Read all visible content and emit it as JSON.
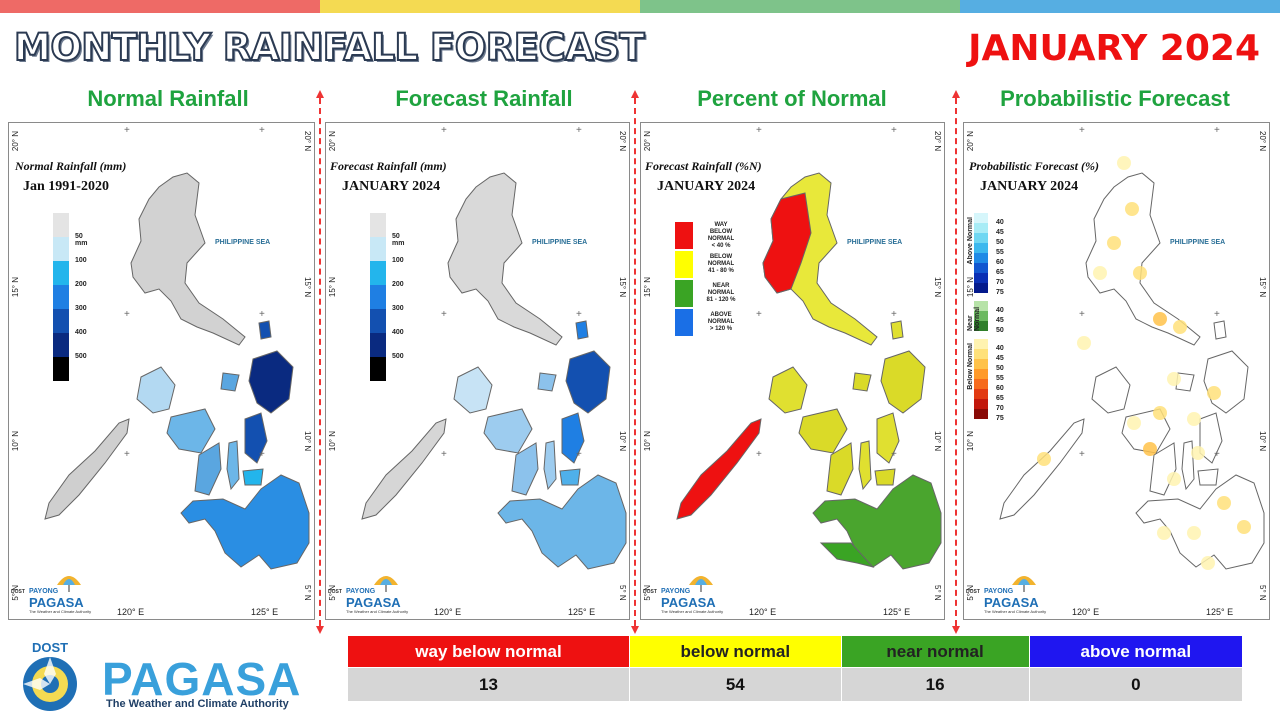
{
  "header": {
    "title": "MONTHLY RAINFALL FORECAST",
    "month": "JANUARY 2024",
    "topbar_colors": [
      "#ee6a66",
      "#f4da52",
      "#7ec38a",
      "#56aee2"
    ]
  },
  "panels": [
    {
      "title": "Normal Rainfall",
      "caption1": "Normal Rainfall (mm)",
      "caption2": "Jan 1991-2020",
      "legend": "mm"
    },
    {
      "title": "Forecast Rainfall",
      "caption1": "Forecast Rainfall (mm)",
      "caption2": "JANUARY 2024",
      "legend": "mm"
    },
    {
      "title": "Percent of Normal",
      "caption1": "Forecast Rainfall (%N)",
      "caption2": "JANUARY 2024",
      "legend": "pct"
    },
    {
      "title": "Probabilistic Forecast",
      "caption1": "Probabilistic Forecast (%)",
      "caption2": "JANUARY 2024",
      "legend": "prob"
    }
  ],
  "map_labels": {
    "sea": "PHILIPPINE SEA",
    "lat_20": "20° N",
    "lat_15": "15° N",
    "lat_10": "10° N",
    "lat_5": "5° N",
    "lon_120": "120° E",
    "lon_125": "125° E"
  },
  "rain_scale": {
    "labels": [
      "50 mm",
      "100",
      "200",
      "300",
      "400",
      "500"
    ],
    "colors": [
      "#e4e4e4",
      "#c8e8f6",
      "#23b5ec",
      "#1f7fe3",
      "#1350b0",
      "#0a2a80",
      "#000000"
    ]
  },
  "percent_legend": [
    {
      "line1": "WAY",
      "line2": "BELOW NORMAL",
      "line3": "< 40 %",
      "color": "#ee1111"
    },
    {
      "line1": "BELOW NORMAL",
      "line2": "41 - 80 %",
      "line3": "",
      "color": "#ffff00"
    },
    {
      "line1": "NEAR NORMAL",
      "line2": "81 - 120 %",
      "line3": "",
      "color": "#3aa424"
    },
    {
      "line1": "ABOVE NORMAL",
      "line2": "> 120 %",
      "line3": "",
      "color": "#1a6fe6"
    }
  ],
  "prob_legend": {
    "above_label": "Above Normal",
    "above_values": [
      "40",
      "45",
      "50",
      "55",
      "60",
      "65",
      "70",
      "75"
    ],
    "above_colors": [
      "#d6f6fb",
      "#a8ecf6",
      "#6fd7f2",
      "#3cb8ee",
      "#1f8ae6",
      "#1257d0",
      "#0a2fb4",
      "#041a8c"
    ],
    "near_label": "Near Normal",
    "near_values": [
      "40",
      "45",
      "50"
    ],
    "near_colors": [
      "#b7e3a8",
      "#6cb960",
      "#2f7f2a"
    ],
    "below_label": "Below Normal",
    "below_values": [
      "40",
      "45",
      "50",
      "55",
      "60",
      "65",
      "70",
      "75"
    ],
    "below_colors": [
      "#fff3b0",
      "#ffe17a",
      "#ffc24a",
      "#ff9a2a",
      "#f66a1c",
      "#e23a12",
      "#c2180c",
      "#8a0a06"
    ]
  },
  "mini_logo": {
    "dost": "DOST",
    "payong": "PAYONG",
    "pagasa": "PAGASA",
    "tagline": "The Weather and Climate Authority"
  },
  "logo": {
    "dost": "DOST",
    "pagasa": "PAGASA",
    "tagline": "The Weather and Climate Authority"
  },
  "summary": {
    "categories": [
      {
        "label": "way below normal",
        "count": "13",
        "bg": "#ee1111",
        "fg": "#ffffff"
      },
      {
        "label": "below normal",
        "count": "54",
        "bg": "#ffff00",
        "fg": "#222222"
      },
      {
        "label": "near normal",
        "count": "16",
        "bg": "#3aa424",
        "fg": "#222222"
      },
      {
        "label": "above normal",
        "count": "0",
        "bg": "#1f16f0",
        "fg": "#ffffff"
      }
    ]
  }
}
